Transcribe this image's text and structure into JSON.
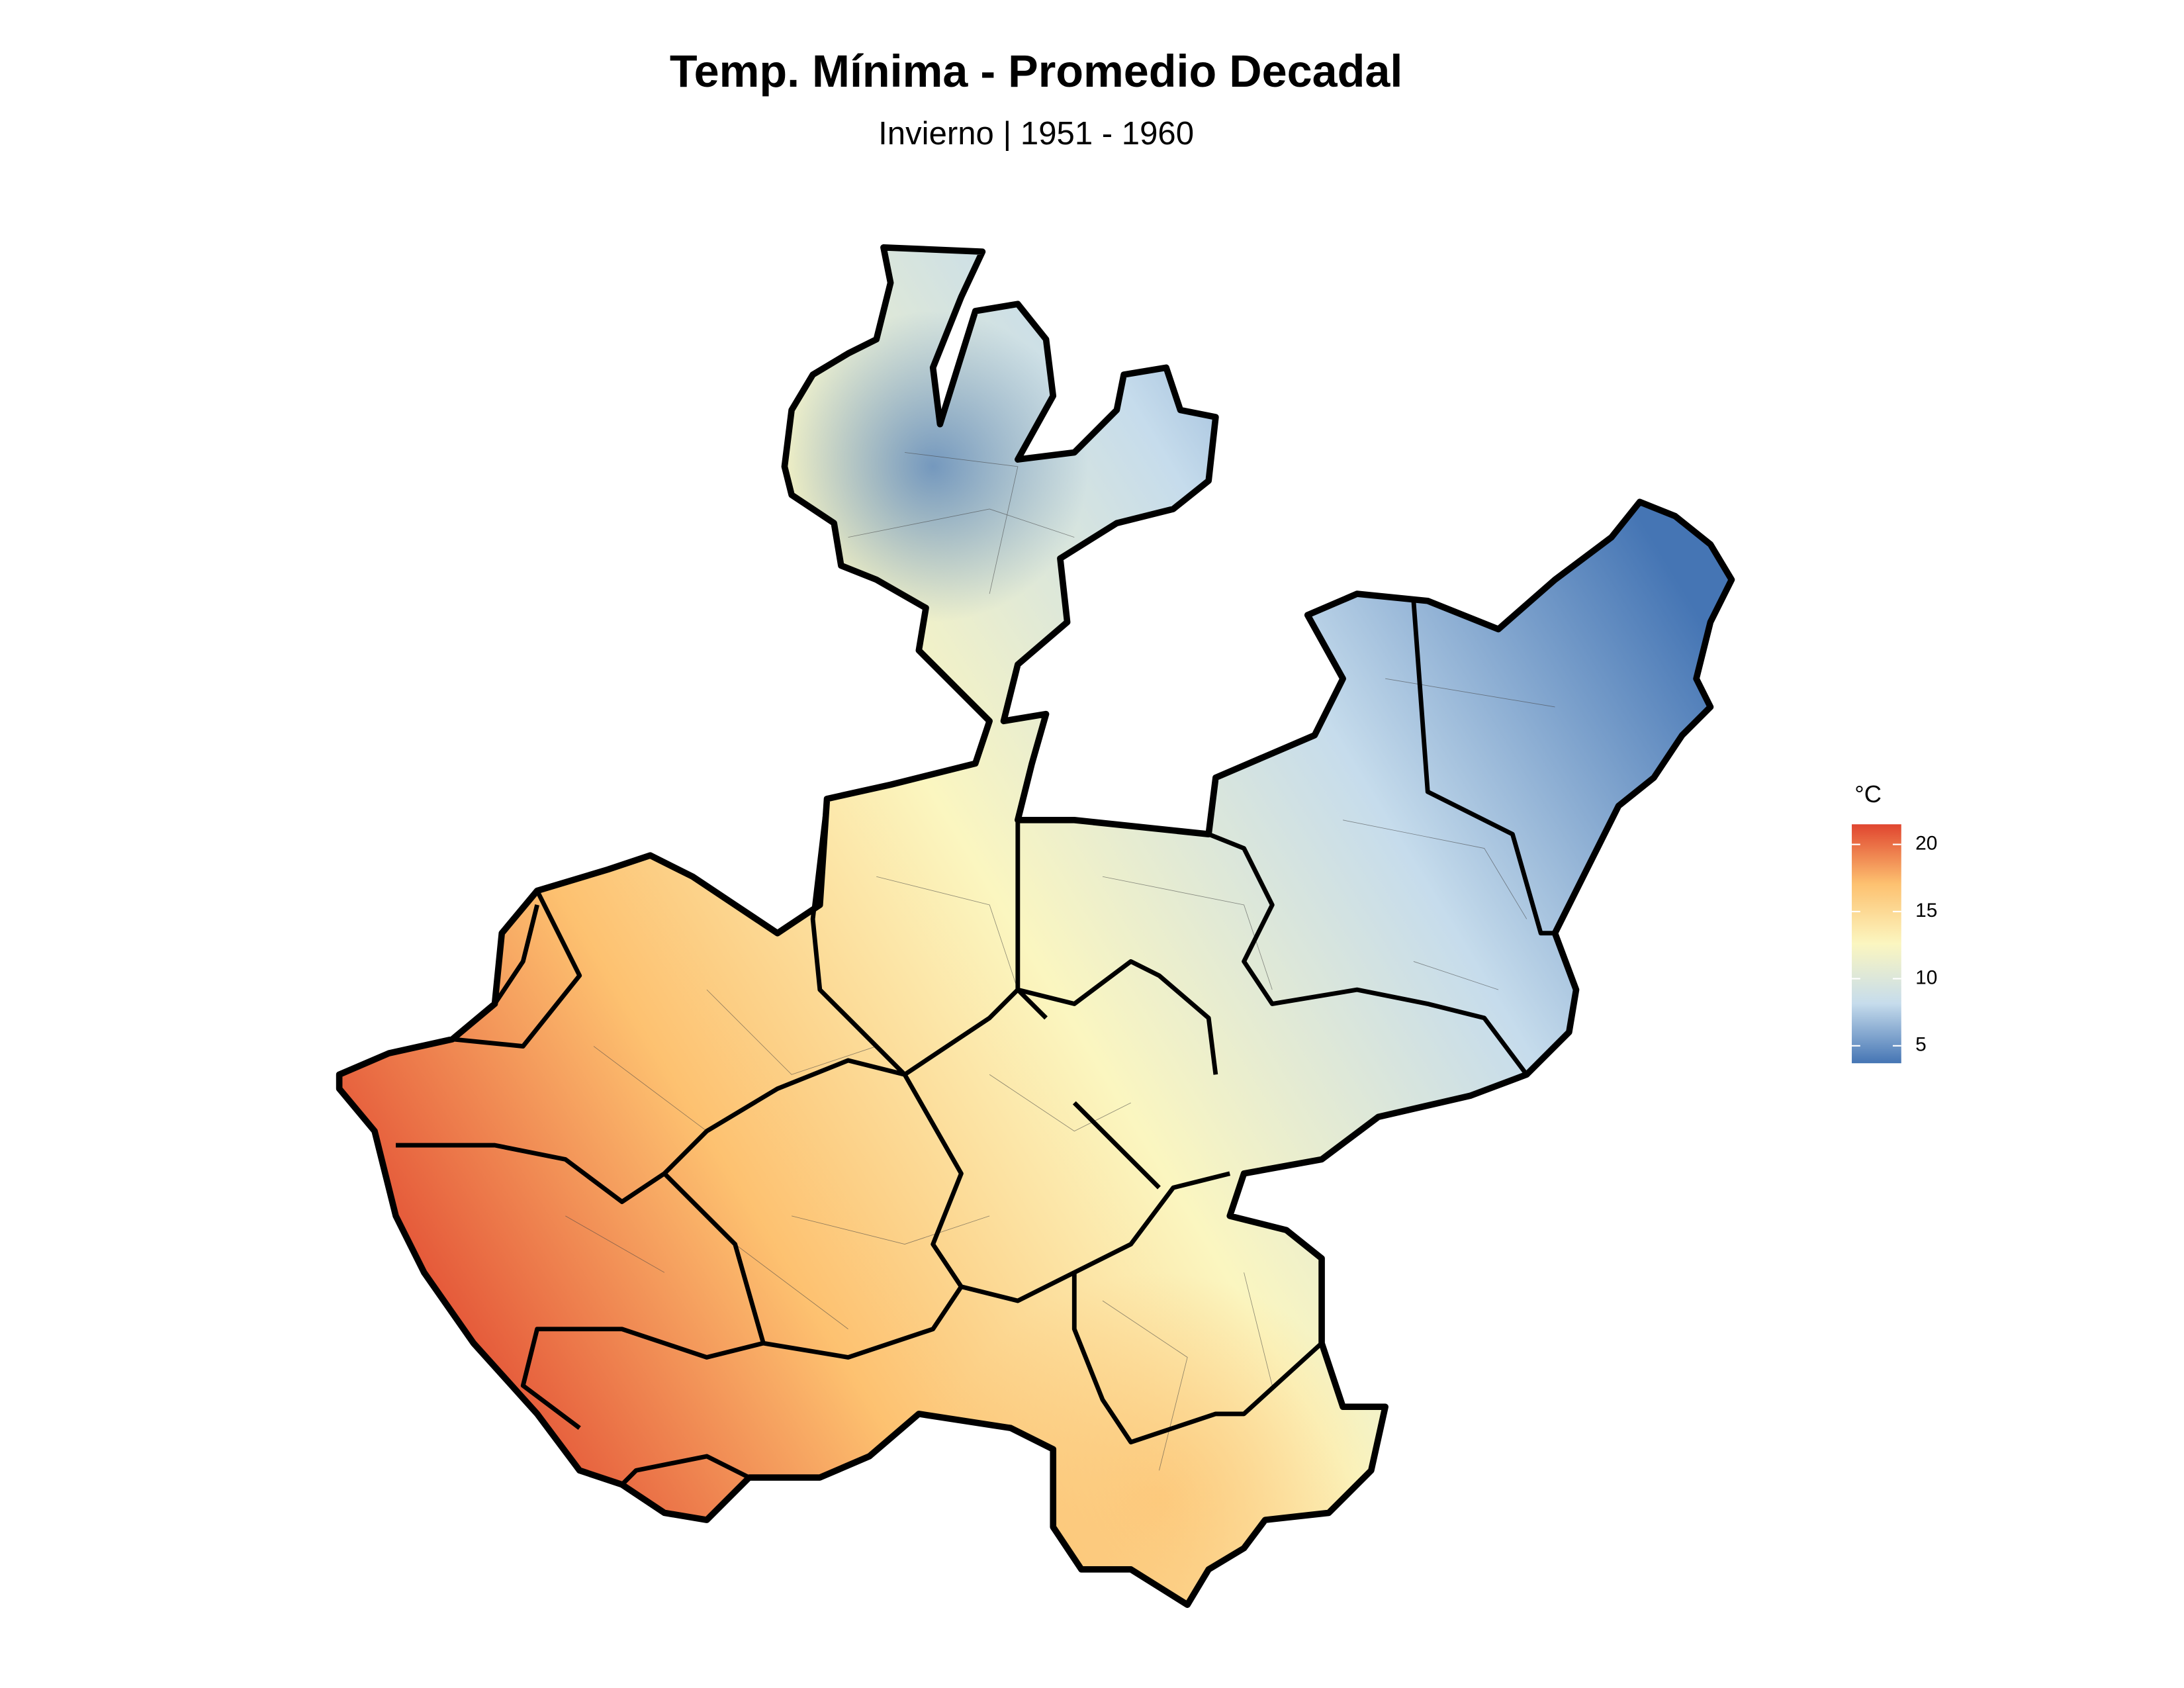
{
  "map": {
    "title": "Temp. Mínima - Promedio Decadal",
    "subtitle": "Invierno | 1951 - 1960",
    "legend": {
      "title": "°C",
      "lim": [
        3.7,
        21.5
      ],
      "ticks": [
        5,
        10,
        15,
        20
      ],
      "colors": [
        "#4575b4",
        "#c6dcec",
        "#fbf6c0",
        "#fdc170",
        "#e0452f"
      ]
    }
  }
}
